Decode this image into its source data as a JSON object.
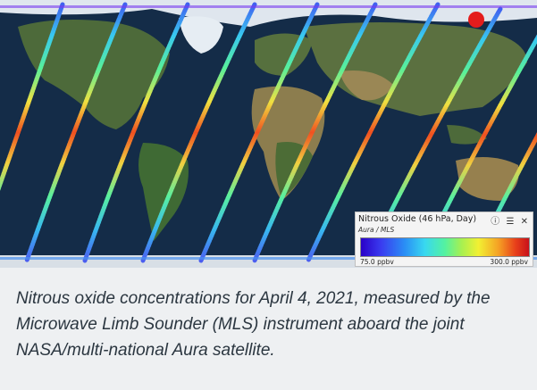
{
  "image": {
    "description_icon": "world-map-satellite-icon",
    "colors": {
      "ocean": "#142c48",
      "land": "#4a6a3a",
      "desert": "#9a8a5a",
      "ice": "#e8eef4",
      "marker": "#e41c1c"
    }
  },
  "legend": {
    "title": "Nitrous Oxide (46 hPa, Day)",
    "subtitle": "Aura / MLS",
    "icons": "ⓘ ☰ ✕",
    "min_label": "75.0 ppbv",
    "max_label": "300.0 ppbv"
  },
  "caption": "Nitrous oxide concentrations for April 4, 2021, measured by the Microwave Limb Sounder (MLS) instrument aboard the joint NASA/multi-national Aura satellite."
}
